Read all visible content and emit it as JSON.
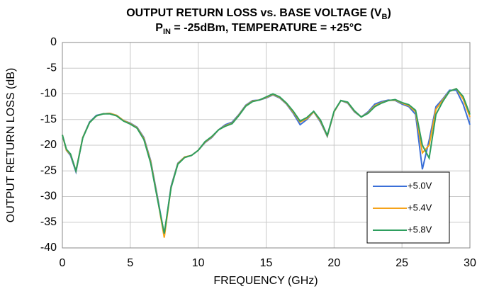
{
  "chart_data": {
    "type": "line",
    "title": [
      "OUTPUT RETURN LOSS vs. BASE VOLTAGE (V",
      "B",
      ")"
    ],
    "subtitle": [
      "P",
      "IN",
      " = -25dBm, TEMPERATURE = +25°C"
    ],
    "x_label": "FREQUENCY (GHz)",
    "y_label": "OUTPUT RETURN LOSS (dB)",
    "xlim": [
      0,
      30
    ],
    "xticks": [
      0,
      5,
      10,
      15,
      20,
      25,
      30
    ],
    "ylim": [
      -40,
      0
    ],
    "yticks": [
      -40,
      -35,
      -30,
      -25,
      -20,
      -15,
      -10,
      -5,
      0
    ],
    "grid": true,
    "legend": "lower right",
    "x": [
      0,
      0.3,
      0.6,
      1.0,
      1.5,
      2,
      2.5,
      3,
      3.5,
      4,
      4.5,
      5,
      5.5,
      6,
      6.5,
      7,
      7.5,
      8,
      8.5,
      9,
      9.5,
      10,
      10.5,
      11,
      11.5,
      12,
      12.5,
      13,
      13.5,
      14,
      14.5,
      15,
      15.5,
      16,
      16.5,
      17,
      17.5,
      18,
      18.5,
      19,
      19.5,
      20,
      20.5,
      21,
      21.5,
      22,
      22.5,
      23,
      23.5,
      24,
      24.5,
      25,
      25.5,
      26,
      26.5,
      27,
      27.5,
      28,
      28.5,
      29,
      29.5,
      30
    ],
    "series": [
      {
        "name": "+5.0V",
        "color": "#3a6fd8",
        "values": [
          -18,
          -21,
          -22,
          -25.2,
          -18.5,
          -15.5,
          -14.2,
          -13.9,
          -13.8,
          -14.2,
          -15.2,
          -15.7,
          -16.5,
          -18.5,
          -23,
          -30,
          -37.5,
          -28,
          -23.5,
          -22.3,
          -22,
          -21,
          -19.5,
          -18.5,
          -17,
          -16,
          -15.5,
          -14,
          -12.2,
          -11.3,
          -11.2,
          -10.8,
          -10.2,
          -10.8,
          -12,
          -13.8,
          -16,
          -15,
          -13.5,
          -15.5,
          -18.3,
          -13.5,
          -11.3,
          -11.8,
          -13.5,
          -14.5,
          -13.5,
          -12,
          -11.5,
          -11.2,
          -11.3,
          -12,
          -12.5,
          -14,
          -24.7,
          -19,
          -12.5,
          -11,
          -9.3,
          -9.3,
          -12,
          -16
        ]
      },
      {
        "name": "+5.4V",
        "color": "#f5a31a",
        "values": [
          -18,
          -21,
          -21.8,
          -25,
          -18.5,
          -15.6,
          -14.3,
          -13.9,
          -13.8,
          -14.2,
          -15.2,
          -15.8,
          -16.6,
          -18.7,
          -23.2,
          -30.3,
          -38,
          -28.2,
          -23.6,
          -22.3,
          -22,
          -21,
          -19.4,
          -18.4,
          -17,
          -16.2,
          -15.7,
          -14.1,
          -12.3,
          -11.4,
          -11.2,
          -10.7,
          -10.1,
          -10.7,
          -11.9,
          -13.6,
          -15.5,
          -14.8,
          -13.5,
          -15.3,
          -18.2,
          -13.5,
          -11.3,
          -11.7,
          -13.4,
          -14.5,
          -13.7,
          -12.3,
          -11.7,
          -11.3,
          -11.2,
          -11.8,
          -12.3,
          -13.5,
          -21.5,
          -20,
          -13,
          -11.2,
          -9.5,
          -9,
          -11,
          -14.5
        ]
      },
      {
        "name": "+5.8V",
        "color": "#2e9e5e",
        "values": [
          -18,
          -20.8,
          -21.7,
          -25,
          -18.6,
          -15.6,
          -14.3,
          -13.9,
          -13.9,
          -14.3,
          -15.3,
          -15.9,
          -16.7,
          -18.9,
          -23.5,
          -30.5,
          -37.2,
          -28.3,
          -23.7,
          -22.4,
          -22,
          -21,
          -19.3,
          -18.3,
          -17,
          -16.3,
          -15.8,
          -14.2,
          -12.4,
          -11.5,
          -11.2,
          -10.6,
          -10,
          -10.6,
          -11.8,
          -13.4,
          -15.3,
          -14.6,
          -13.4,
          -15.1,
          -18.1,
          -13.4,
          -11.3,
          -11.6,
          -13.3,
          -14.5,
          -13.8,
          -12.5,
          -11.8,
          -11.3,
          -11.1,
          -11.7,
          -12.1,
          -13.2,
          -20,
          -22.5,
          -14,
          -11.5,
          -9.5,
          -9,
          -10.5,
          -14
        ]
      }
    ]
  }
}
